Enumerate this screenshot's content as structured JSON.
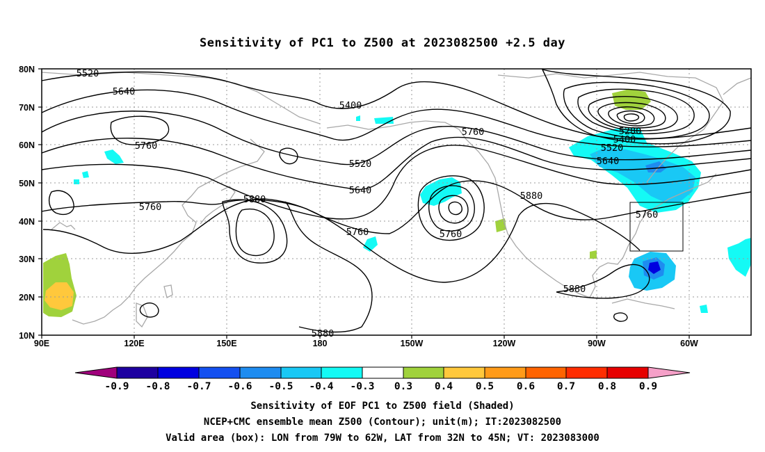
{
  "title": "Sensitivity of PC1 to Z500 at 2023082500 +2.5 day",
  "axes": {
    "x_labels": [
      "90E",
      "120E",
      "150E",
      "180",
      "150W",
      "120W",
      "90W",
      "60W"
    ],
    "y_labels": [
      "80N",
      "70N",
      "60N",
      "50N",
      "40N",
      "30N",
      "20N",
      "10N"
    ],
    "lon_range": [
      "90E",
      "40W"
    ],
    "lat_range": [
      "10N",
      "80N"
    ],
    "grid": true
  },
  "contour_labels": [
    "5520",
    "5640",
    "5760",
    "5400",
    "5520",
    "5640",
    "5760",
    "5880",
    "5760",
    "5760",
    "5760",
    "5880",
    "5280",
    "5400",
    "5520",
    "5640",
    "5760",
    "5880",
    "5880"
  ],
  "colorbar": {
    "labels": [
      "-0.9",
      "-0.8",
      "-0.7",
      "-0.6",
      "-0.5",
      "-0.4",
      "-0.3",
      "0.3",
      "0.4",
      "0.5",
      "0.6",
      "0.7",
      "0.8",
      "0.9"
    ],
    "colors": [
      "#a0007c",
      "#1e00a0",
      "#0000e0",
      "#1450f0",
      "#1e8cf0",
      "#19c8f5",
      "#14faf5",
      "#ffffff",
      "#a0d23c",
      "#ffc83c",
      "#ff9b19",
      "#ff6400",
      "#ff2d00",
      "#e60000",
      "#f5a0c8"
    ]
  },
  "colors": {
    "contour": "#000000",
    "coast": "#a8a8a8",
    "grid": "#9a9a9a",
    "box": "#000000"
  },
  "footer": {
    "line1": "Sensitivity of EOF PC1 to Z500 field (Shaded)",
    "line2": "NCEP+CMC ensemble mean Z500 (Contour); unit(m); IT:2023082500",
    "line3": "Valid area (box): LON from 79W to 62W, LAT from 32N to 45N; VT: 2023083000"
  }
}
